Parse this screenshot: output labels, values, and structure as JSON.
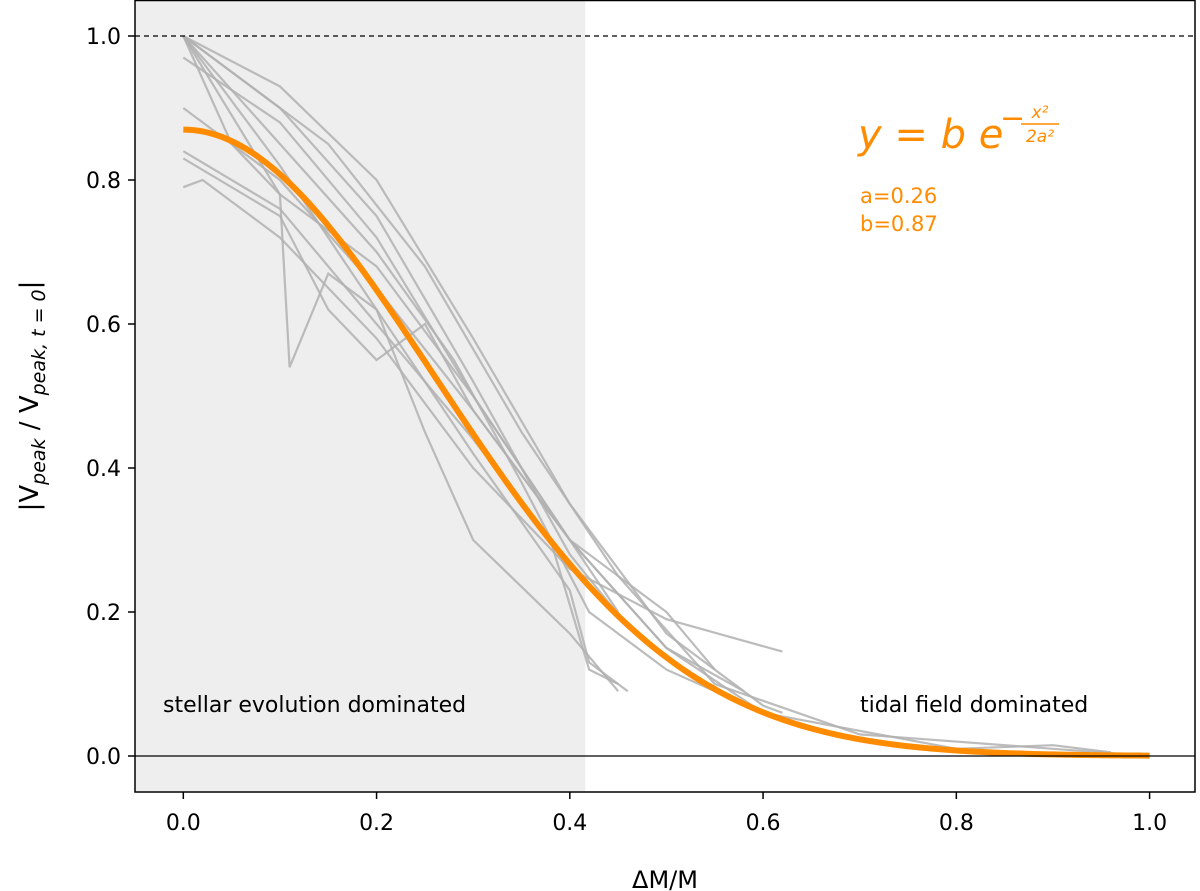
{
  "chart_data": {
    "type": "line",
    "xlabel": "ΔM/M",
    "ylabel": {
      "prefix": "|V",
      "sub1": "peak",
      "mid": " / V",
      "sub2": "peak, t = 0",
      "suffix": "|"
    },
    "xlim": [
      -0.05,
      1.047
    ],
    "ylim": [
      -0.05,
      1.05
    ],
    "xticks": [
      "0.0",
      "0.2",
      "0.4",
      "0.6",
      "0.8",
      "1.0"
    ],
    "xtick_values": [
      0,
      0.2,
      0.4,
      0.6,
      0.8,
      1.0
    ],
    "yticks": [
      "0.0",
      "0.2",
      "0.4",
      "0.6",
      "0.8",
      "1.0"
    ],
    "ytick_values": [
      0,
      0.2,
      0.4,
      0.6,
      0.8,
      1.0
    ],
    "grid": false,
    "shaded_region": {
      "x": [
        -0.05,
        0.416
      ],
      "color": "#eeeeee"
    },
    "reference_lines": [
      {
        "y": 1.0,
        "style": "dashed",
        "color": "#000000"
      },
      {
        "y": 0.0,
        "style": "solid",
        "color": "#000000"
      }
    ],
    "annotations": {
      "left_region": "stellar evolution dominated",
      "right_region": "tidal field dominated",
      "formula": {
        "base": "y = b e",
        "sign": "−",
        "numerator": "x²",
        "denominator": "2a²"
      },
      "param_a": "a=0.26",
      "param_b": "b=0.87"
    },
    "fit": {
      "a": 0.26,
      "b": 0.87,
      "x_range": [
        0,
        1
      ],
      "color": "#ff8c00"
    },
    "series_color": "#b0b0b0",
    "series": [
      {
        "points": [
          [
            0,
            1
          ],
          [
            0.1,
            0.9
          ],
          [
            0.2,
            0.75
          ],
          [
            0.3,
            0.52
          ],
          [
            0.4,
            0.28
          ],
          [
            0.46,
            0.18
          ]
        ]
      },
      {
        "points": [
          [
            0,
            1
          ],
          [
            0.1,
            0.93
          ],
          [
            0.2,
            0.8
          ],
          [
            0.3,
            0.58
          ],
          [
            0.4,
            0.35
          ],
          [
            0.5,
            0.17
          ],
          [
            0.6,
            0.07
          ],
          [
            0.62,
            0.06
          ]
        ]
      },
      {
        "points": [
          [
            0,
            0.79
          ],
          [
            0.02,
            0.8
          ],
          [
            0.1,
            0.72
          ],
          [
            0.2,
            0.58
          ],
          [
            0.3,
            0.4
          ],
          [
            0.4,
            0.26
          ],
          [
            0.5,
            0.19
          ],
          [
            0.62,
            0.145
          ]
        ]
      },
      {
        "points": [
          [
            0,
            1
          ],
          [
            0.1,
            0.82
          ],
          [
            0.2,
            0.62
          ],
          [
            0.3,
            0.42
          ],
          [
            0.4,
            0.23
          ],
          [
            0.42,
            0.13
          ],
          [
            0.46,
            0.09
          ]
        ]
      },
      {
        "points": [
          [
            0,
            1
          ],
          [
            0.05,
            0.85
          ],
          [
            0.1,
            0.78
          ],
          [
            0.2,
            0.68
          ],
          [
            0.3,
            0.5
          ],
          [
            0.4,
            0.3
          ],
          [
            0.5,
            0.15
          ],
          [
            0.6,
            0.06
          ],
          [
            0.8,
            0.01
          ],
          [
            0.9,
            0.015
          ],
          [
            0.96,
            0.005
          ]
        ]
      },
      {
        "points": [
          [
            0,
            1
          ],
          [
            0.1,
            0.78
          ],
          [
            0.11,
            0.54
          ],
          [
            0.15,
            0.67
          ],
          [
            0.2,
            0.62
          ],
          [
            0.25,
            0.45
          ],
          [
            0.3,
            0.3
          ],
          [
            0.4,
            0.17
          ],
          [
            0.45,
            0.09
          ]
        ]
      },
      {
        "points": [
          [
            0,
            0.97
          ],
          [
            0.1,
            0.88
          ],
          [
            0.2,
            0.72
          ],
          [
            0.3,
            0.5
          ],
          [
            0.4,
            0.3
          ],
          [
            0.5,
            0.15
          ],
          [
            0.58,
            0.09
          ]
        ]
      },
      {
        "points": [
          [
            0,
            1
          ],
          [
            0.15,
            0.85
          ],
          [
            0.25,
            0.68
          ],
          [
            0.35,
            0.45
          ],
          [
            0.45,
            0.25
          ],
          [
            0.55,
            0.1
          ],
          [
            0.7,
            0.03
          ],
          [
            1.0,
            0.0
          ]
        ]
      },
      {
        "points": [
          [
            0,
            0.83
          ],
          [
            0.1,
            0.75
          ],
          [
            0.15,
            0.62
          ],
          [
            0.2,
            0.55
          ],
          [
            0.25,
            0.6
          ],
          [
            0.3,
            0.48
          ],
          [
            0.4,
            0.3
          ],
          [
            0.45,
            0.2
          ]
        ]
      },
      {
        "points": [
          [
            0,
            0.9
          ],
          [
            0.1,
            0.8
          ],
          [
            0.2,
            0.65
          ],
          [
            0.3,
            0.48
          ],
          [
            0.4,
            0.3
          ],
          [
            0.5,
            0.2
          ],
          [
            0.55,
            0.12
          ]
        ]
      },
      {
        "points": [
          [
            0,
            1
          ],
          [
            0.1,
            0.85
          ],
          [
            0.2,
            0.7
          ],
          [
            0.28,
            0.55
          ],
          [
            0.35,
            0.38
          ],
          [
            0.42,
            0.2
          ],
          [
            0.5,
            0.12
          ],
          [
            0.6,
            0.06
          ]
        ]
      },
      {
        "points": [
          [
            0,
            0.84
          ],
          [
            0.1,
            0.76
          ],
          [
            0.2,
            0.6
          ],
          [
            0.3,
            0.44
          ],
          [
            0.38,
            0.3
          ],
          [
            0.42,
            0.12
          ],
          [
            0.45,
            0.1
          ]
        ]
      }
    ]
  }
}
